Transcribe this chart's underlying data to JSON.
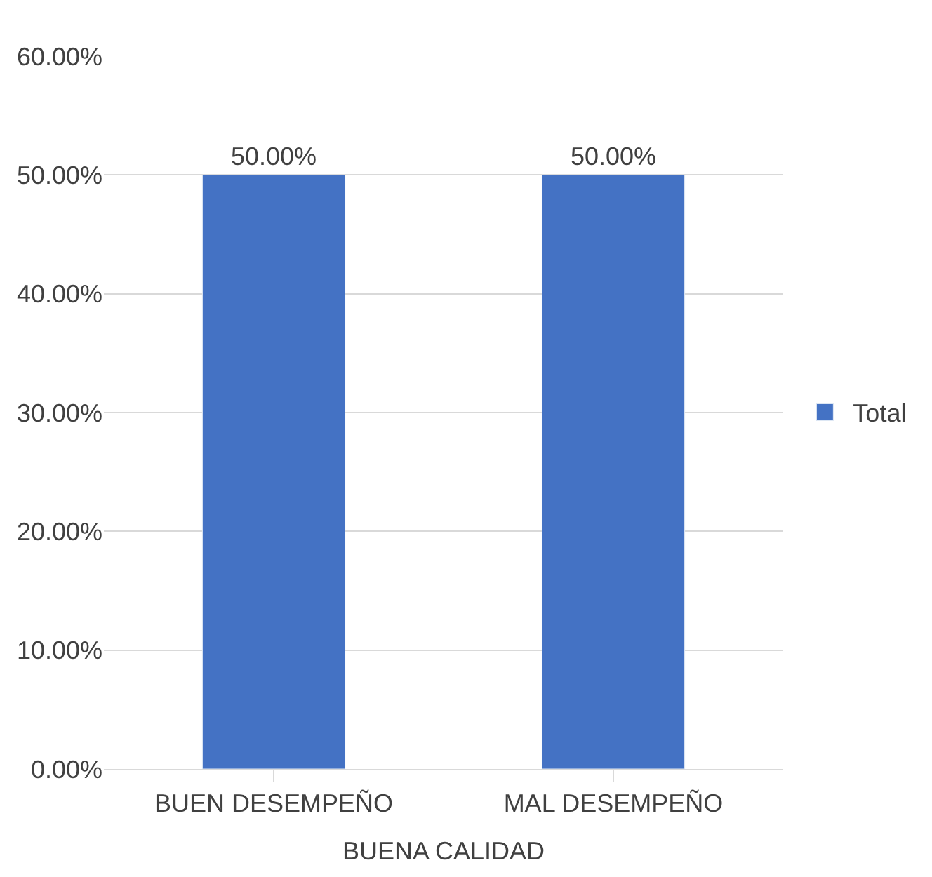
{
  "chart_data": {
    "type": "bar",
    "categories": [
      "BUEN DESEMPEÑO",
      "MAL DESEMPEÑO"
    ],
    "xlabel": "BUENA CALIDAD",
    "series": [
      {
        "name": "Total",
        "color": "#4472c4",
        "values": [
          50,
          50
        ],
        "value_labels": [
          "50.00%",
          "50.00%"
        ]
      }
    ],
    "ylim": [
      0,
      60
    ],
    "yticks": [
      {
        "value": 0,
        "label": "0.00%"
      },
      {
        "value": 10,
        "label": "10.00%"
      },
      {
        "value": 20,
        "label": "20.00%"
      },
      {
        "value": 30,
        "label": "30.00%"
      },
      {
        "value": 40,
        "label": "40.00%"
      },
      {
        "value": 50,
        "label": "50.00%"
      },
      {
        "value": 60,
        "label": "60.00%"
      }
    ],
    "grid": "y",
    "legend": "right"
  }
}
